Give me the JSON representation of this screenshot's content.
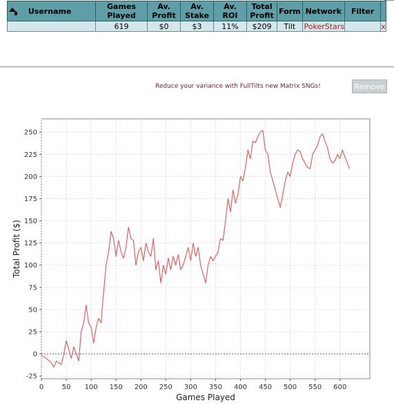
{
  "table": {
    "headers": [
      "Username",
      "Games Played",
      "Av. Profit",
      "Av. Stake",
      "Av. ROI",
      "Total Profit",
      "Form",
      "Network",
      "Filter"
    ],
    "row": {
      "username": "",
      "games_played": "619",
      "av_profit": "$0",
      "av_stake": "$3",
      "av_roi": "11%",
      "total_profit": "$209",
      "form": "Tilt",
      "network": "PokerStars",
      "filter": "",
      "remove": "x"
    }
  },
  "promo": {
    "text": "Reduce your variance with FullTilts new Matrix SNGs!"
  },
  "remove_button": {
    "label": "Remove"
  },
  "chart_data": {
    "type": "line",
    "xlabel": "Games Played",
    "ylabel": "Total Profit ($)",
    "xlim": [
      0,
      660
    ],
    "ylim": [
      -28,
      265
    ],
    "xticks": [
      0,
      50,
      100,
      150,
      200,
      250,
      300,
      350,
      400,
      450,
      500,
      550,
      600
    ],
    "yticks": [
      -25,
      0,
      25,
      50,
      75,
      100,
      125,
      150,
      175,
      200,
      225,
      250
    ],
    "grid": true,
    "zero_line": true,
    "series_color": "#e06060",
    "zero_line_color": "#5555cc",
    "x": [
      0,
      10,
      20,
      25,
      30,
      40,
      45,
      50,
      55,
      60,
      65,
      70,
      75,
      80,
      85,
      90,
      95,
      100,
      105,
      110,
      115,
      120,
      125,
      130,
      135,
      140,
      145,
      150,
      155,
      160,
      165,
      170,
      175,
      180,
      185,
      190,
      195,
      200,
      205,
      210,
      215,
      220,
      225,
      230,
      235,
      240,
      245,
      250,
      255,
      260,
      265,
      270,
      275,
      280,
      285,
      290,
      295,
      300,
      305,
      310,
      315,
      320,
      325,
      330,
      335,
      340,
      345,
      350,
      355,
      360,
      365,
      370,
      375,
      380,
      385,
      390,
      395,
      400,
      405,
      410,
      415,
      420,
      425,
      430,
      435,
      440,
      445,
      450,
      455,
      460,
      465,
      470,
      475,
      480,
      485,
      490,
      495,
      500,
      505,
      510,
      515,
      520,
      525,
      530,
      535,
      540,
      545,
      550,
      555,
      560,
      565,
      570,
      575,
      580,
      585,
      590,
      595,
      600,
      605,
      610,
      615,
      619
    ],
    "y": [
      -2,
      -5,
      -10,
      -15,
      -8,
      -12,
      0,
      15,
      5,
      -5,
      8,
      0,
      -8,
      25,
      35,
      55,
      35,
      30,
      12,
      30,
      40,
      35,
      70,
      100,
      115,
      138,
      130,
      110,
      128,
      115,
      108,
      120,
      143,
      130,
      128,
      100,
      115,
      120,
      105,
      125,
      115,
      110,
      130,
      95,
      105,
      80,
      100,
      90,
      108,
      95,
      110,
      100,
      112,
      95,
      100,
      110,
      120,
      105,
      125,
      110,
      120,
      100,
      90,
      80,
      100,
      110,
      105,
      110,
      115,
      130,
      128,
      150,
      175,
      160,
      185,
      170,
      180,
      200,
      195,
      210,
      230,
      220,
      240,
      238,
      245,
      250,
      252,
      230,
      225,
      205,
      195,
      185,
      175,
      165,
      180,
      195,
      205,
      200,
      215,
      225,
      230,
      228,
      220,
      215,
      210,
      209,
      225,
      230,
      235,
      245,
      248,
      240,
      232,
      220,
      215,
      218,
      225,
      220,
      230,
      222,
      215,
      209
    ]
  }
}
